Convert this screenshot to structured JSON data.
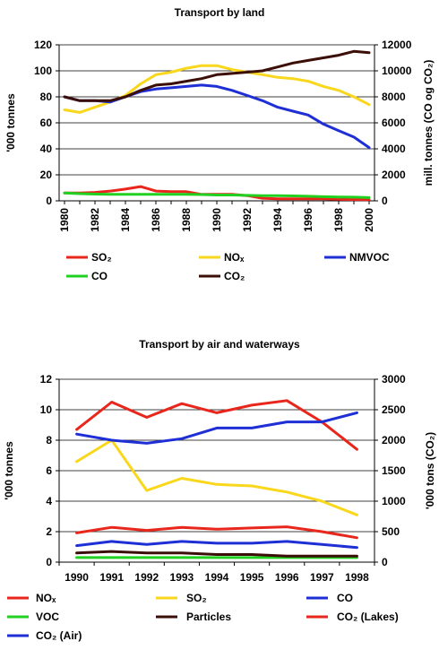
{
  "chart_data": [
    {
      "type": "line",
      "title": "Transport by land",
      "ylabel": "'000 tonnes",
      "ylabel_right": "mill. tonnes (CO og CO₂)",
      "xlabel": "",
      "x": [
        1980,
        1981,
        1982,
        1983,
        1984,
        1985,
        1986,
        1987,
        1988,
        1989,
        1990,
        1991,
        1992,
        1993,
        1994,
        1995,
        1996,
        1997,
        1998,
        1999,
        2000
      ],
      "x_ticks": [
        "1980",
        "1982",
        "1984",
        "1986",
        "1988",
        "1990",
        "1992",
        "1994",
        "1996",
        "1998",
        "2000"
      ],
      "ylim": [
        0,
        120
      ],
      "y_ticks": [
        "0",
        "20",
        "40",
        "60",
        "80",
        "100",
        "120"
      ],
      "ylim_right": [
        0,
        12000
      ],
      "y_ticks_right": [
        "0",
        "2000",
        "4000",
        "6000",
        "8000",
        "10000",
        "12000"
      ],
      "grid": true,
      "series": [
        {
          "name": "SO₂",
          "axis": "left",
          "color": "#e8261c",
          "values": [
            6,
            6,
            6.5,
            7.5,
            9,
            11,
            7.5,
            7,
            7,
            5,
            5,
            5,
            4,
            2,
            1.5,
            1.5,
            1.5,
            1.5,
            1.2,
            1,
            0.8
          ]
        },
        {
          "name": "NOₓ",
          "axis": "left",
          "color": "#f9d71c",
          "values": [
            70,
            68,
            72,
            76,
            81,
            90,
            97,
            99,
            102,
            104,
            104,
            101,
            99,
            97,
            95,
            94,
            92,
            88,
            85,
            80,
            74
          ]
        },
        {
          "name": "NMVOC",
          "axis": "left",
          "color": "#1f2fd6",
          "values": [
            80,
            77,
            77,
            76,
            80,
            84,
            86,
            87,
            88,
            89,
            88,
            85,
            81,
            77,
            72,
            69,
            66,
            59,
            54,
            49,
            41
          ]
        },
        {
          "name": "CO",
          "axis": "left",
          "color": "#21d121",
          "values": [
            6,
            5.5,
            5.2,
            5,
            5,
            5,
            5,
            5,
            5,
            4.8,
            4.5,
            4.5,
            4.2,
            4,
            4,
            3.8,
            3.5,
            3.2,
            3,
            2.8,
            2.5
          ]
        },
        {
          "name": "CO₂",
          "axis": "right",
          "color": "#3b0f08",
          "values": [
            8000,
            7700,
            7700,
            7700,
            8000,
            8500,
            8900,
            9000,
            9200,
            9400,
            9700,
            9800,
            9900,
            10000,
            10300,
            10600,
            10800,
            11000,
            11200,
            11500,
            11400
          ]
        }
      ],
      "legend": {
        "placement": "bottom",
        "entries": [
          {
            "label": "SO₂",
            "color": "#e8261c"
          },
          {
            "label": "NOₓ",
            "color": "#f9d71c"
          },
          {
            "label": "NMVOC",
            "color": "#1f2fd6"
          },
          {
            "label": "CO",
            "color": "#21d121"
          },
          {
            "label": "CO₂",
            "color": "#3b0f08"
          }
        ]
      }
    },
    {
      "type": "line",
      "title": "Transport by air and waterways",
      "ylabel": "'000 tonnes",
      "ylabel_right": "'000 tons (CO₂)",
      "xlabel": "",
      "categories": [
        "1990",
        "1991",
        "1992",
        "1993",
        "1994",
        "1995",
        "1996",
        "1997",
        "1998"
      ],
      "ylim": [
        0,
        12
      ],
      "y_ticks": [
        "0",
        "2",
        "4",
        "6",
        "8",
        "10",
        "12"
      ],
      "ylim_right": [
        0,
        3000
      ],
      "y_ticks_right": [
        "0",
        "500",
        "1000",
        "1500",
        "2000",
        "2500",
        "3000"
      ],
      "grid": true,
      "series": [
        {
          "name": "NOₓ",
          "axis": "left",
          "color": "#e8261c",
          "values": [
            8.7,
            10.5,
            9.5,
            10.4,
            9.8,
            10.3,
            10.6,
            9.2,
            7.4
          ]
        },
        {
          "name": "SO₂",
          "axis": "left",
          "color": "#f9d71c",
          "values": [
            6.6,
            8,
            4.7,
            5.5,
            5.1,
            5,
            4.6,
            4,
            3.1
          ]
        },
        {
          "name": "CO",
          "axis": "left",
          "color": "#1f2fd6",
          "values": [
            8.4,
            8,
            7.8,
            8.1,
            8.8,
            8.8,
            9.2,
            9.2,
            9.8
          ]
        },
        {
          "name": "VOC",
          "axis": "left",
          "color": "#21d121",
          "values": [
            0.3,
            0.3,
            0.3,
            0.3,
            0.3,
            0.3,
            0.3,
            0.3,
            0.3
          ]
        },
        {
          "name": "Particles",
          "axis": "left",
          "color": "#3b0f08",
          "values": [
            0.6,
            0.7,
            0.6,
            0.6,
            0.5,
            0.5,
            0.4,
            0.4,
            0.4
          ]
        },
        {
          "name": "CO₂ (Lakes)",
          "axis": "right",
          "color": "#e8261c",
          "values": [
            480,
            570,
            520,
            570,
            540,
            560,
            580,
            500,
            400
          ]
        },
        {
          "name": "CO₂ (Air)",
          "axis": "right",
          "color": "#1f2fd6",
          "values": [
            270,
            340,
            290,
            340,
            310,
            310,
            340,
            290,
            240
          ]
        }
      ],
      "legend": {
        "placement": "bottom",
        "entries": [
          {
            "label": "NOₓ",
            "color": "#e8261c"
          },
          {
            "label": "SO₂",
            "color": "#f9d71c"
          },
          {
            "label": "CO",
            "color": "#1f2fd6"
          },
          {
            "label": "VOC",
            "color": "#21d121"
          },
          {
            "label": "Particles",
            "color": "#3b0f08"
          },
          {
            "label": "CO₂ (Lakes)",
            "color": "#e8261c"
          },
          {
            "label": "CO₂ (Air)",
            "color": "#1f2fd6"
          }
        ]
      }
    }
  ]
}
